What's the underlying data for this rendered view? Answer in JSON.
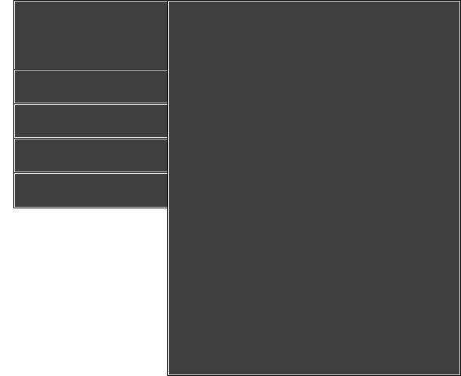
{
  "colors": {
    "panel_fill": "#3f3f3f",
    "panel_border_light": "#e6e6e6",
    "panel_border_dark": "#000000",
    "page_background": "#ffffff"
  },
  "sidebar": {
    "header_label": "",
    "items": [
      {
        "label": ""
      },
      {
        "label": ""
      },
      {
        "label": ""
      },
      {
        "label": ""
      }
    ]
  },
  "main": {
    "content_label": ""
  }
}
